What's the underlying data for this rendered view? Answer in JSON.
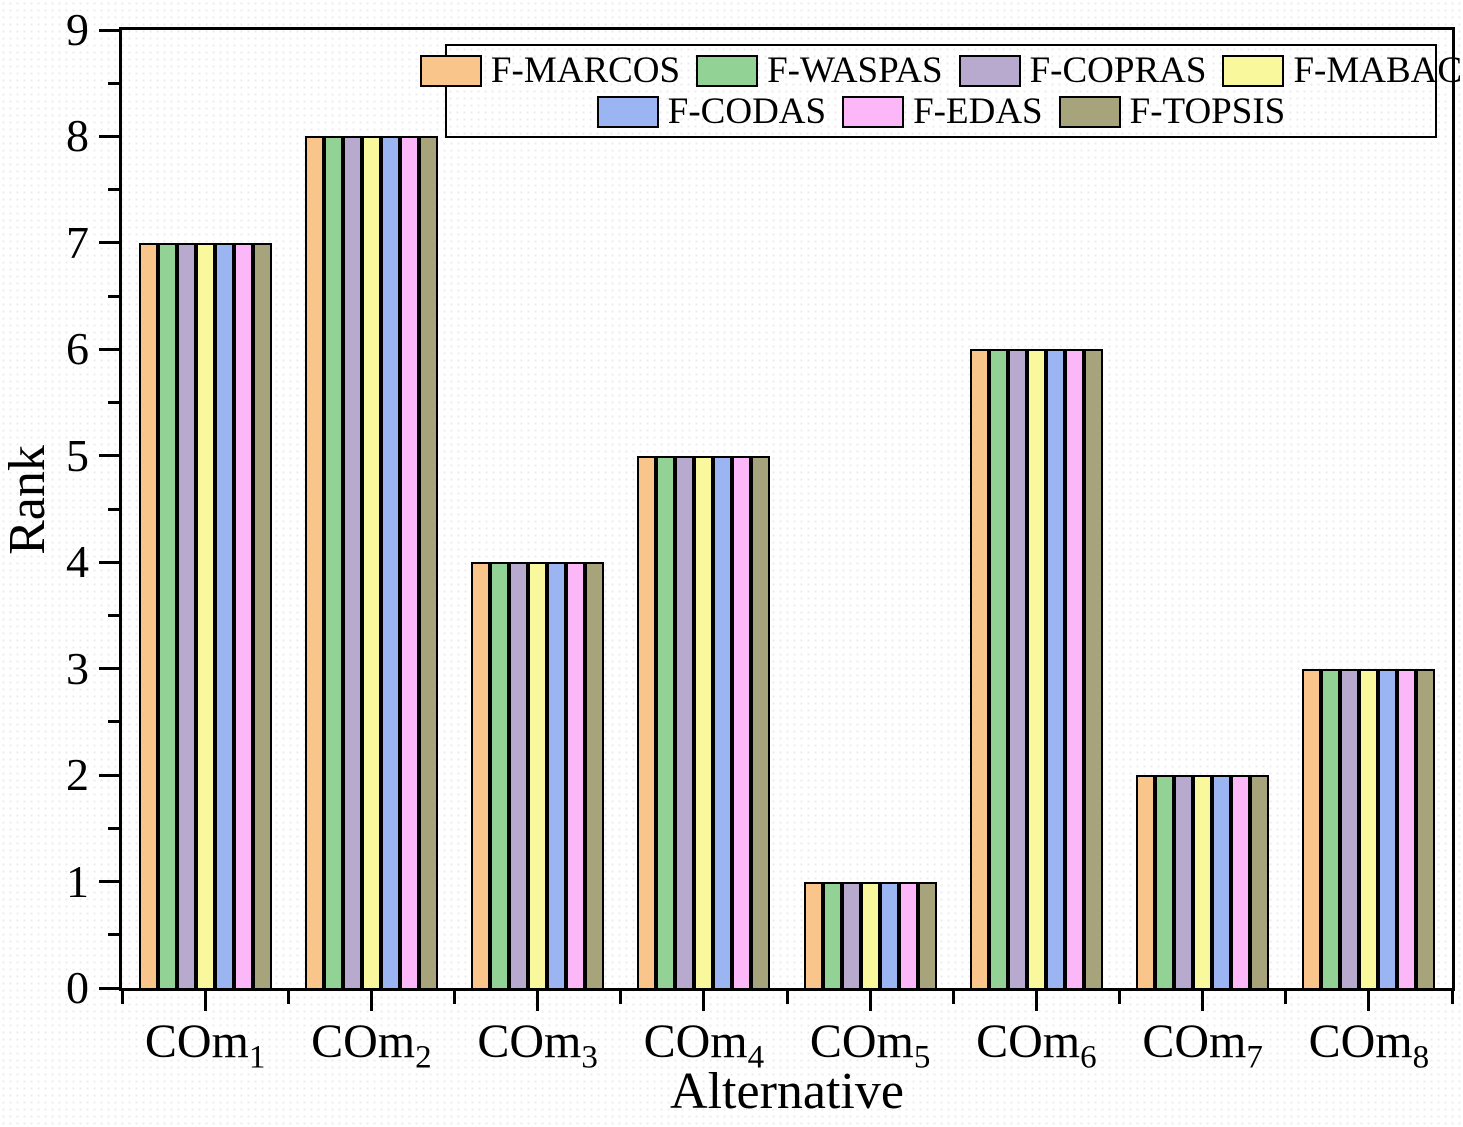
{
  "chart_data": {
    "type": "bar",
    "title": "",
    "xlabel": "Alternative",
    "ylabel": "Rank",
    "ylim": [
      0,
      9
    ],
    "y_major_step": 1,
    "y_minor_step": 0.5,
    "grid": false,
    "legend_position": "top-center-inside",
    "legend_rows": [
      4,
      3
    ],
    "bar_group_fraction": 0.8,
    "bar_outline_color": "#000000",
    "axis_color": "#000000",
    "text_color": "#000000",
    "categories": [
      "COm1",
      "COm2",
      "COm3",
      "COm4",
      "COm5",
      "COm6",
      "COm7",
      "COm8"
    ],
    "series": [
      {
        "name": "F-MARCOS",
        "color": "#FAC58B",
        "values": [
          7,
          8,
          4,
          5,
          1,
          6,
          2,
          3
        ]
      },
      {
        "name": "F-WASPAS",
        "color": "#93D295",
        "values": [
          7,
          8,
          4,
          5,
          1,
          6,
          2,
          3
        ]
      },
      {
        "name": "F-COPRAS",
        "color": "#B8A9CE",
        "values": [
          7,
          8,
          4,
          5,
          1,
          6,
          2,
          3
        ]
      },
      {
        "name": "F-MABAC",
        "color": "#FAF89C",
        "values": [
          7,
          8,
          4,
          5,
          1,
          6,
          2,
          3
        ]
      },
      {
        "name": "F-CODAS",
        "color": "#9AB5F2",
        "values": [
          7,
          8,
          4,
          5,
          1,
          6,
          2,
          3
        ]
      },
      {
        "name": "F-EDAS",
        "color": "#FBB7F7",
        "values": [
          7,
          8,
          4,
          5,
          1,
          6,
          2,
          3
        ]
      },
      {
        "name": "F-TOPSIS",
        "color": "#A7A37A",
        "values": [
          7,
          8,
          4,
          5,
          1,
          6,
          2,
          3
        ]
      }
    ]
  }
}
